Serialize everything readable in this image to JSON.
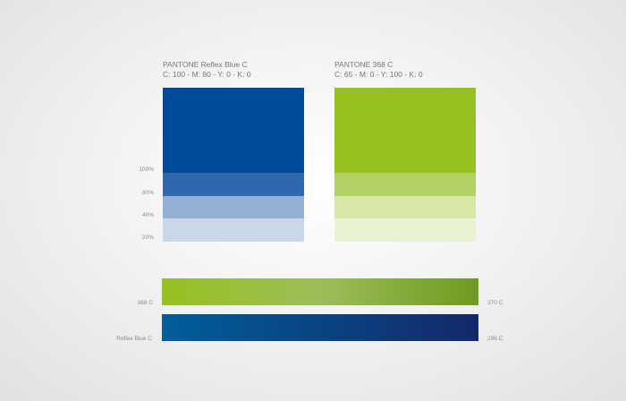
{
  "blue": {
    "title": "PANTONE Reflex Blue C",
    "cmyk": "C: 100  -  M: 80  -  Y: 0  -  K: 0",
    "base": "#004a9b",
    "tints": [
      "#2f69ad",
      "#93b1d5",
      "#c9d7e8"
    ]
  },
  "green": {
    "title": "PANTONE 368 C",
    "cmyk": "C: 65  -  M: 0  -  Y: 100  -  K: 0",
    "base": "#97c11f",
    "tints": [
      "#b2d266",
      "#d6e7a6",
      "#e9f2d3"
    ]
  },
  "percent_labels": [
    "100%",
    "80%",
    "40%",
    "20%"
  ],
  "gradients": {
    "green_left_label": "368 C",
    "green_right_label": "370 C",
    "green_from": "#97c11f",
    "green_mid": "#9dbd5a",
    "green_to": "#6f9a1f",
    "blue_left_label": "Reflex Blue C",
    "blue_right_label": "296 C",
    "blue_from": "#005e9a",
    "blue_to": "#13296a"
  }
}
